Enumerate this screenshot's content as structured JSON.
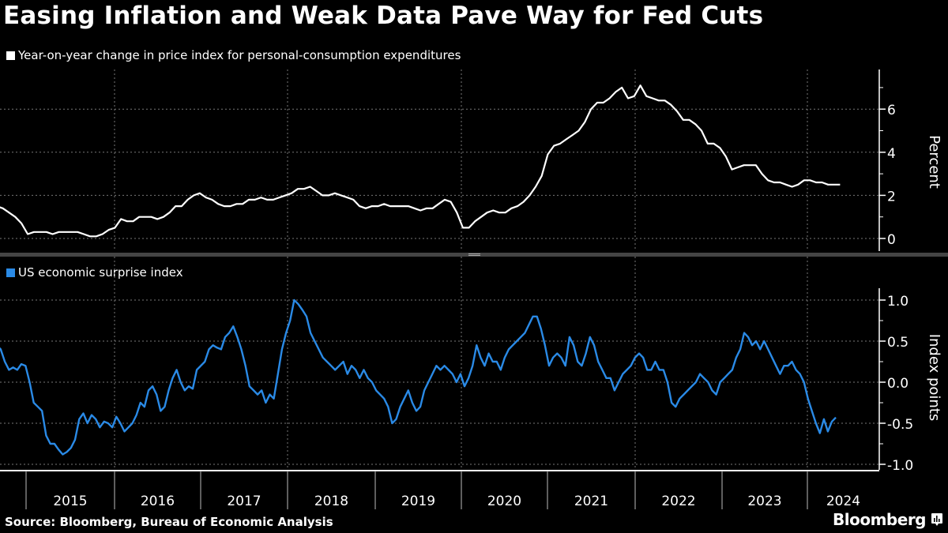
{
  "title": "Easing Inflation and Weak Data Pave Way for Fed Cuts",
  "source": "Source: Bloomberg, Bureau of Economic Analysis",
  "brand": "Bloomberg",
  "chart_data": [
    {
      "type": "line",
      "panel": "top",
      "legend": "Year-on-year change in price index for personal-consumption expenditures",
      "ylabel": "Percent",
      "ylim": [
        -0.7,
        7.8
      ],
      "yticks": [
        0,
        2,
        4,
        6
      ],
      "yticks_minor": [
        1,
        3,
        5,
        7
      ],
      "grid": true,
      "color": "#ffffff",
      "series": [
        {
          "name": "PCE price index YoY %",
          "x_start": "2014-09",
          "frequency": "monthly",
          "values": [
            1.5,
            1.4,
            1.2,
            1.0,
            0.7,
            0.2,
            0.3,
            0.3,
            0.3,
            0.2,
            0.3,
            0.3,
            0.3,
            0.3,
            0.2,
            0.1,
            0.1,
            0.2,
            0.4,
            0.5,
            0.9,
            0.8,
            0.8,
            1.0,
            1.0,
            1.0,
            0.9,
            1.0,
            1.2,
            1.5,
            1.5,
            1.8,
            2.0,
            2.1,
            1.9,
            1.8,
            1.6,
            1.5,
            1.5,
            1.6,
            1.6,
            1.8,
            1.8,
            1.9,
            1.8,
            1.8,
            1.9,
            2.0,
            2.1,
            2.3,
            2.3,
            2.4,
            2.2,
            2.0,
            2.0,
            2.1,
            2.0,
            1.9,
            1.8,
            1.5,
            1.4,
            1.5,
            1.5,
            1.6,
            1.5,
            1.5,
            1.5,
            1.5,
            1.4,
            1.3,
            1.4,
            1.4,
            1.6,
            1.8,
            1.7,
            1.2,
            0.5,
            0.5,
            0.8,
            1.0,
            1.2,
            1.3,
            1.2,
            1.2,
            1.4,
            1.5,
            1.7,
            2.0,
            2.4,
            2.9,
            3.9,
            4.3,
            4.4,
            4.6,
            4.8,
            5.0,
            5.4,
            6.0,
            6.3,
            6.3,
            6.5,
            6.8,
            7.0,
            6.5,
            6.6,
            7.1,
            6.6,
            6.5,
            6.4,
            6.4,
            6.2,
            5.9,
            5.5,
            5.5,
            5.3,
            5.0,
            4.4,
            4.4,
            4.2,
            3.8,
            3.2,
            3.3,
            3.4,
            3.4,
            3.4,
            3.0,
            2.7,
            2.6,
            2.6,
            2.5,
            2.4,
            2.5,
            2.7,
            2.7,
            2.6,
            2.6,
            2.5,
            2.5,
            2.5
          ]
        }
      ]
    },
    {
      "type": "line",
      "panel": "bottom",
      "legend": "US economic surprise index",
      "ylabel": "Index points",
      "ylim": [
        -1.1,
        1.15
      ],
      "yticks": [
        1.0,
        0.5,
        0.0,
        -0.5,
        -1.0
      ],
      "ytick_labels": [
        "1.0",
        "0.5",
        "0.0",
        "-0.5",
        "-1.0"
      ],
      "yticks_minor": [
        0.75,
        0.25,
        -0.25,
        -0.75
      ],
      "grid": true,
      "color": "#2a8ae6",
      "series": [
        {
          "name": "US economic surprise index",
          "x_start": "2014-09",
          "frequency": "semi-monthly",
          "values": [
            0.45,
            0.4,
            0.25,
            0.15,
            0.18,
            0.15,
            0.22,
            0.2,
            0.0,
            -0.25,
            -0.3,
            -0.35,
            -0.65,
            -0.75,
            -0.75,
            -0.82,
            -0.88,
            -0.85,
            -0.8,
            -0.7,
            -0.45,
            -0.38,
            -0.5,
            -0.4,
            -0.45,
            -0.55,
            -0.48,
            -0.5,
            -0.55,
            -0.42,
            -0.5,
            -0.6,
            -0.55,
            -0.5,
            -0.4,
            -0.25,
            -0.3,
            -0.1,
            -0.05,
            -0.15,
            -0.35,
            -0.3,
            -0.1,
            0.05,
            0.15,
            0.0,
            -0.1,
            -0.05,
            -0.08,
            0.15,
            0.2,
            0.25,
            0.4,
            0.45,
            0.42,
            0.4,
            0.55,
            0.6,
            0.68,
            0.55,
            0.4,
            0.2,
            -0.05,
            -0.1,
            -0.15,
            -0.1,
            -0.25,
            -0.15,
            -0.2,
            0.1,
            0.4,
            0.6,
            0.75,
            1.0,
            0.95,
            0.88,
            0.8,
            0.6,
            0.5,
            0.4,
            0.3,
            0.25,
            0.2,
            0.15,
            0.2,
            0.25,
            0.1,
            0.2,
            0.15,
            0.05,
            0.15,
            0.05,
            0.0,
            -0.1,
            -0.15,
            -0.2,
            -0.3,
            -0.5,
            -0.45,
            -0.3,
            -0.2,
            -0.1,
            -0.25,
            -0.35,
            -0.3,
            -0.1,
            0.0,
            0.1,
            0.2,
            0.15,
            0.2,
            0.15,
            0.1,
            0.0,
            0.1,
            -0.05,
            0.05,
            0.2,
            0.45,
            0.3,
            0.2,
            0.35,
            0.25,
            0.25,
            0.15,
            0.3,
            0.4,
            0.45,
            0.5,
            0.55,
            0.6,
            0.7,
            0.8,
            0.8,
            0.65,
            0.45,
            0.2,
            0.3,
            0.35,
            0.3,
            0.2,
            0.55,
            0.45,
            0.25,
            0.2,
            0.35,
            0.55,
            0.45,
            0.25,
            0.15,
            0.05,
            0.05,
            -0.1,
            0.0,
            0.1,
            0.15,
            0.2,
            0.3,
            0.35,
            0.3,
            0.15,
            0.15,
            0.25,
            0.15,
            0.15,
            0.0,
            -0.25,
            -0.3,
            -0.2,
            -0.15,
            -0.1,
            -0.05,
            0.0,
            0.1,
            0.05,
            0.0,
            -0.1,
            -0.15,
            0.0,
            0.05,
            0.1,
            0.15,
            0.3,
            0.4,
            0.6,
            0.55,
            0.45,
            0.5,
            0.4,
            0.5,
            0.4,
            0.3,
            0.2,
            0.1,
            0.2,
            0.2,
            0.25,
            0.15,
            0.1,
            0.0,
            -0.2,
            -0.35,
            -0.5,
            -0.62,
            -0.45,
            -0.6,
            -0.48,
            -0.43
          ]
        }
      ]
    }
  ],
  "x_axis": {
    "labels": [
      "2015",
      "2016",
      "2017",
      "2018",
      "2019",
      "2020",
      "2021",
      "2022",
      "2023",
      "2024"
    ],
    "range": [
      "2014-09",
      "2024-07"
    ]
  }
}
